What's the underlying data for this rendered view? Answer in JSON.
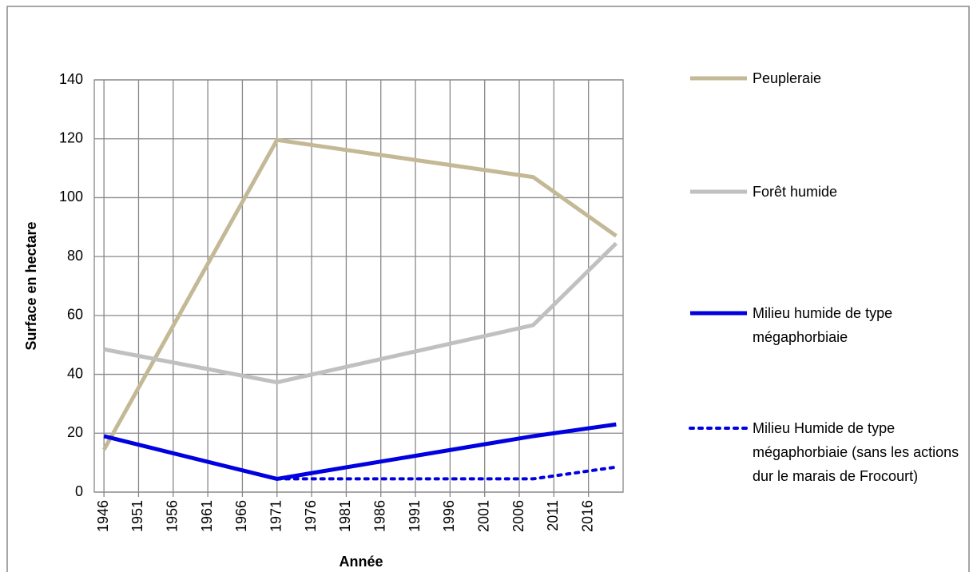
{
  "chart_data": {
    "type": "line",
    "xlabel": "Année",
    "ylabel": "Surface en hectare",
    "x": [
      1946,
      1971,
      2008,
      2020
    ],
    "series": [
      {
        "name": "Peupleraie",
        "color": "#c4b996",
        "line_style": "solid",
        "values": [
          14.4,
          119.6,
          107,
          87
        ]
      },
      {
        "name": "Forêt humide",
        "color": "#c0c0c0",
        "line_style": "solid",
        "values": [
          48.5,
          37.3,
          56.7,
          84.5
        ]
      },
      {
        "name": "Milieu humide de type mégaphorbiaie",
        "color": "#0000e0",
        "line_style": "solid",
        "values": [
          19,
          4.5,
          19,
          23
        ]
      },
      {
        "name": "Milieu Humide de type mégaphorbiaie (sans les actions dur le marais de Frocourt)",
        "color": "#0000e0",
        "line_style": "dotted",
        "values": [
          null,
          4.5,
          4.5,
          8.5
        ]
      }
    ],
    "xlim": [
      1944.6,
      2021
    ],
    "xticks": [
      1946,
      1951,
      1956,
      1961,
      1966,
      1971,
      1976,
      1981,
      1986,
      1991,
      1996,
      2001,
      2006,
      2011,
      2016
    ],
    "ylim": [
      0,
      140
    ],
    "yticks": [
      0,
      20,
      40,
      60,
      80,
      100,
      120,
      140
    ],
    "grid": true,
    "legend": "right"
  }
}
